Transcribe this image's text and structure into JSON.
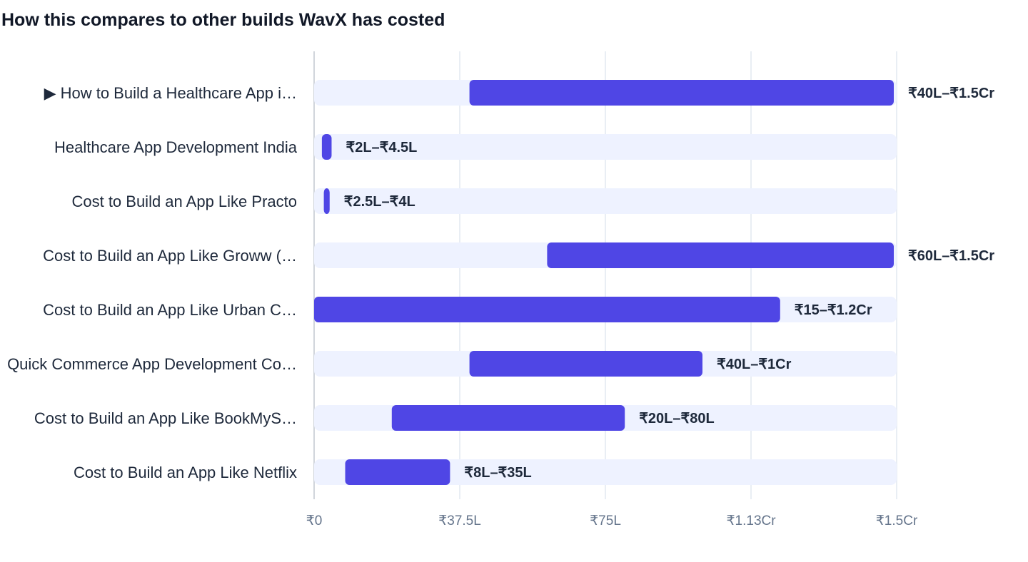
{
  "chart_data": {
    "type": "bar",
    "title": "How this compares to other builds WavX has costed",
    "orientation": "horizontal",
    "range_bars": true,
    "xlabel": "",
    "ylabel": "",
    "xlim": [
      0,
      150
    ],
    "x_unit": "lakh (₹)",
    "grid": true,
    "legend": "none",
    "x_ticks": [
      {
        "value": 0,
        "label": "₹0"
      },
      {
        "value": 37.5,
        "label": "₹37.5L"
      },
      {
        "value": 75,
        "label": "₹75L"
      },
      {
        "value": 112.5,
        "label": "₹1.13Cr"
      },
      {
        "value": 150,
        "label": "₹1.5Cr"
      }
    ],
    "categories": [
      "▶ How to Build a Healthcare App i…",
      "Healthcare App Development India",
      "Cost to Build an App Like Practo",
      "Cost to Build an App Like Groww (…",
      "Cost to Build an App Like Urban C…",
      "Quick Commerce App Development Co…",
      "Cost to Build an App Like BookMyS…",
      "Cost to Build an App Like Netflix"
    ],
    "series": [
      {
        "values": [
          {
            "low": 40,
            "high": 150,
            "label": "₹40L–₹1.5Cr"
          },
          {
            "low": 2,
            "high": 4.5,
            "label": "₹2L–₹4.5L"
          },
          {
            "low": 2.5,
            "high": 4,
            "label": "₹2.5L–₹4L"
          },
          {
            "low": 60,
            "high": 150,
            "label": "₹60L–₹1.5Cr"
          },
          {
            "low": 0,
            "high": 120,
            "label": "₹15–₹1.2Cr"
          },
          {
            "low": 40,
            "high": 100,
            "label": "₹40L–₹1Cr"
          },
          {
            "low": 20,
            "high": 80,
            "label": "₹20L–₹80L"
          },
          {
            "low": 8,
            "high": 35,
            "label": "₹8L–₹35L"
          }
        ]
      }
    ],
    "colors": {
      "bar": "#4f46e5",
      "track": "#eef2ff",
      "grid": "#e2e8f0",
      "axis": "#d1d5db"
    }
  }
}
